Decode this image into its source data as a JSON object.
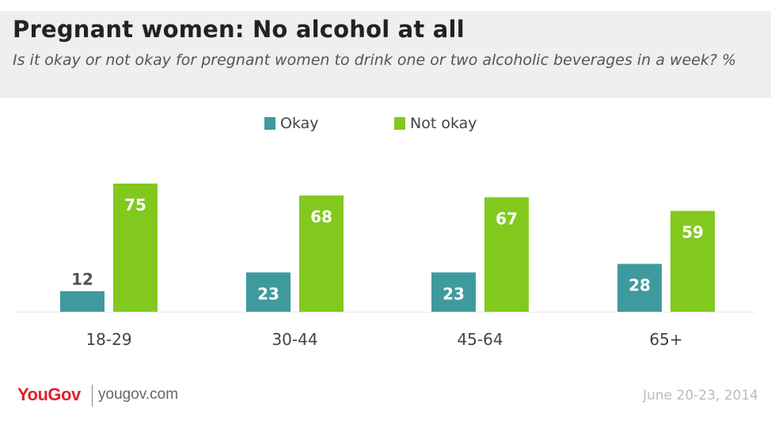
{
  "chart_data": {
    "type": "bar",
    "title": "Pregnant women: No alcohol at all",
    "subtitle": "Is it okay or not okay for pregnant women to drink one or two alcoholic beverages in a week? %",
    "categories": [
      "18-29",
      "30-44",
      "45-64",
      "65+"
    ],
    "series": [
      {
        "name": "Okay",
        "color": "#3f9a9e",
        "values": [
          12,
          23,
          23,
          28
        ]
      },
      {
        "name": "Not okay",
        "color": "#82c91e",
        "values": [
          75,
          68,
          67,
          59
        ]
      }
    ],
    "ylim": [
      0,
      75
    ],
    "grid": false,
    "legend_position": "top-center"
  },
  "footer": {
    "logo": "YouGov",
    "url": "yougov.com",
    "date": "June 20-23, 2014"
  }
}
